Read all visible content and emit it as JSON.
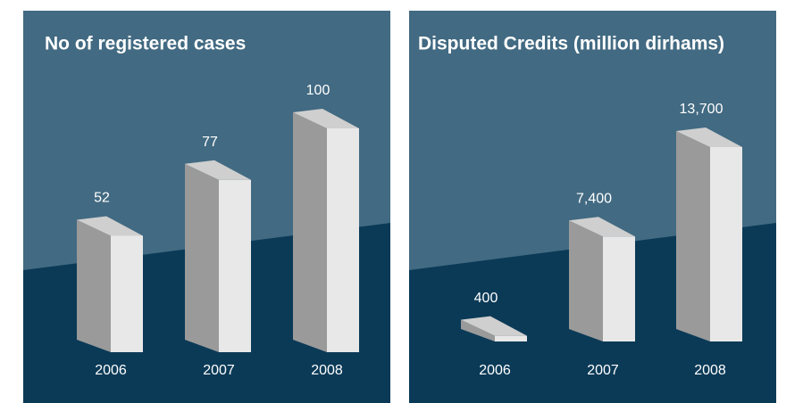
{
  "chart_data": [
    {
      "type": "bar",
      "title": "No of registered cases",
      "categories": [
        "2006",
        "2007",
        "2008"
      ],
      "values": [
        52,
        77,
        100
      ],
      "color": "#e8e8e8"
    },
    {
      "type": "bar",
      "title": "Disputed Credits (million dirhams)",
      "categories": [
        "2006",
        "2007",
        "2008"
      ],
      "values": [
        400,
        7400,
        13700
      ],
      "value_labels": [
        "400",
        "7,400",
        "13,700"
      ],
      "color": "#e8e8e8"
    }
  ]
}
